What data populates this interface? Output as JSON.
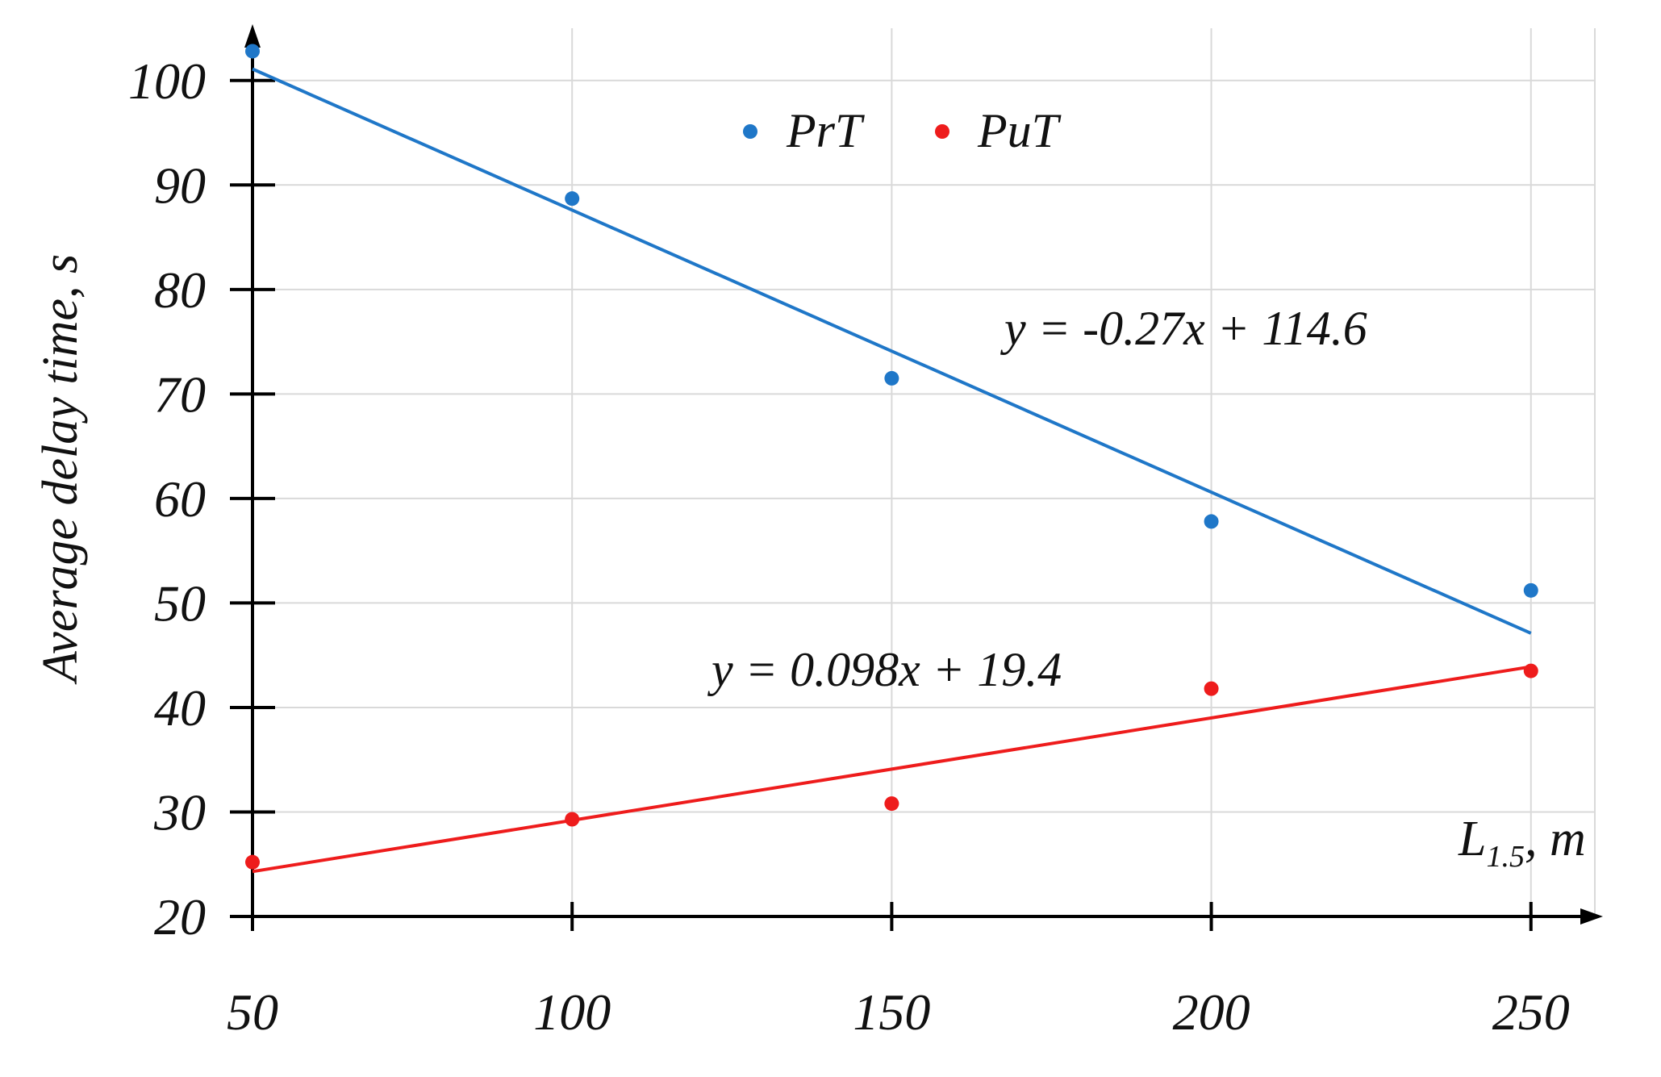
{
  "chart_data": {
    "type": "scatter",
    "title": "",
    "xlabel": "L1.5, m",
    "xlabel_main": "L",
    "xlabel_sub": "1.5",
    "xlabel_unit": ", m",
    "ylabel": "Average delay time, s",
    "xlim": [
      50,
      260
    ],
    "ylim": [
      20,
      105
    ],
    "xticks": [
      "50",
      "100",
      "150",
      "200",
      "250"
    ],
    "yticks": [
      "20",
      "30",
      "40",
      "50",
      "60",
      "70",
      "80",
      "90",
      "100"
    ],
    "grid": true,
    "legend_position": "top-center",
    "series": [
      {
        "name": "PrT",
        "color": "#1f77c8",
        "x": [
          50,
          100,
          150,
          200,
          250
        ],
        "y": [
          102.8,
          88.7,
          71.5,
          57.8,
          51.2
        ],
        "trendline": {
          "slope": -0.27,
          "intercept": 114.6,
          "x_range": [
            50,
            250
          ]
        },
        "equation": "y = -0.27x + 114.6"
      },
      {
        "name": "PuT",
        "color": "#ee1c1c",
        "x": [
          50,
          100,
          150,
          200,
          250
        ],
        "y": [
          25.2,
          29.3,
          30.8,
          41.8,
          43.5
        ],
        "trendline": {
          "slope": 0.098,
          "intercept": 19.4,
          "x_range": [
            50,
            250
          ]
        },
        "equation": "y = 0.098x + 19.4"
      }
    ]
  }
}
